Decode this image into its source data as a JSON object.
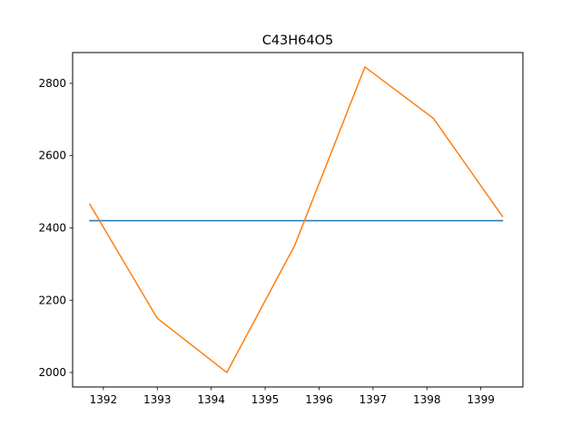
{
  "chart_data": {
    "type": "line",
    "title": "C43H64O5",
    "xlabel": "",
    "ylabel": "",
    "xlim": [
      1391.43,
      1399.78
    ],
    "ylim": [
      1960,
      2885
    ],
    "x_ticks": [
      1392,
      1393,
      1394,
      1395,
      1396,
      1397,
      1398,
      1399
    ],
    "y_ticks": [
      2000,
      2200,
      2400,
      2600,
      2800
    ],
    "grid": false,
    "series": [
      {
        "color": "#1f77b4",
        "x": [
          1391.75,
          1399.4
        ],
        "y": [
          2420,
          2420
        ]
      },
      {
        "color": "#ff7f0e",
        "x": [
          1391.75,
          1393.0,
          1394.29,
          1395.55,
          1396.85,
          1398.12,
          1399.4
        ],
        "y": [
          2465,
          2150,
          2000,
          2352,
          2845,
          2703,
          2432
        ]
      }
    ]
  }
}
